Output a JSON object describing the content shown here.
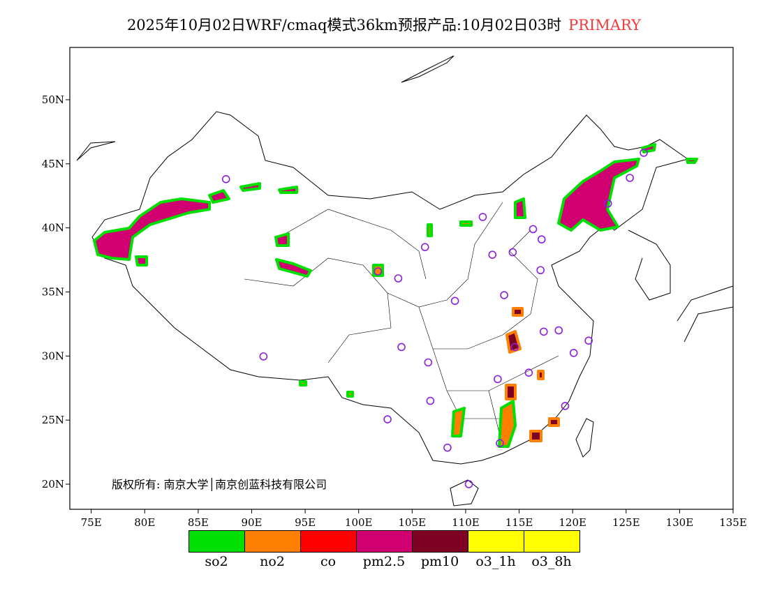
{
  "title": {
    "main": "2025年10月02日WRF/cmaq模式36km预报产品:10月02日03时",
    "tag": "PRIMARY",
    "tag_color": "#f03a3a"
  },
  "map": {
    "lon_range": [
      73,
      135
    ],
    "lat_range": [
      18.04,
      54.08
    ],
    "lon_ticks": [
      "75E",
      "80E",
      "85E",
      "90E",
      "95E",
      "100E",
      "105E",
      "110E",
      "115E",
      "120E",
      "125E",
      "130E",
      "135E"
    ],
    "lat_ticks": [
      "20N",
      "25N",
      "30N",
      "35N",
      "40N",
      "45N",
      "50N"
    ],
    "stations": [
      [
        87.6,
        43.8
      ],
      [
        103.7,
        36.06
      ],
      [
        101.8,
        36.6
      ],
      [
        106.2,
        38.5
      ],
      [
        111.6,
        40.85
      ],
      [
        112.5,
        37.9
      ],
      [
        114.4,
        38.1
      ],
      [
        116.3,
        39.9
      ],
      [
        117.1,
        39.1
      ],
      [
        117.0,
        36.7
      ],
      [
        113.6,
        34.75
      ],
      [
        109.0,
        34.3
      ],
      [
        104.0,
        30.7
      ],
      [
        106.5,
        29.5
      ],
      [
        106.7,
        26.5
      ],
      [
        102.7,
        25.06
      ],
      [
        108.3,
        22.85
      ],
      [
        110.3,
        20.0
      ],
      [
        113.2,
        23.2
      ],
      [
        113.0,
        28.2
      ],
      [
        115.9,
        28.7
      ],
      [
        117.3,
        31.9
      ],
      [
        118.7,
        32.0
      ],
      [
        120.1,
        30.24
      ],
      [
        121.5,
        31.2
      ],
      [
        119.3,
        26.1
      ],
      [
        114.6,
        30.7
      ],
      [
        91.1,
        29.97
      ],
      [
        126.65,
        45.86
      ],
      [
        125.35,
        43.9
      ],
      [
        123.3,
        41.9
      ]
    ],
    "station_color": "#8a1fe0",
    "copyright": "版权所有: 南京大学│南京创蓝科技有限公司"
  },
  "legend": [
    {
      "label": "so2",
      "color": "#00e000"
    },
    {
      "label": "no2",
      "color": "#ff7f00"
    },
    {
      "label": "co",
      "color": "#ff0000"
    },
    {
      "label": "pm2.5",
      "color": "#d00070"
    },
    {
      "label": "pm10",
      "color": "#7e0023"
    },
    {
      "label": "o3_1h",
      "color": "#ffff00"
    },
    {
      "label": "o3_8h",
      "color": "#ffff00"
    }
  ]
}
